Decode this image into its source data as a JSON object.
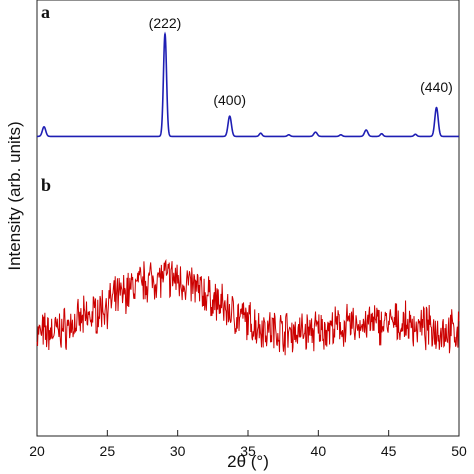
{
  "chart_data": {
    "type": "line",
    "xlabel": "2θ (°)",
    "ylabel": "Intensity (arb. units)",
    "xlim": [
      20,
      50
    ],
    "xticks": [
      20,
      25,
      30,
      35,
      40,
      45,
      50
    ],
    "y_tick_labels": false,
    "grid": false,
    "legend": "none",
    "panels": [
      {
        "id": "a",
        "letter": "a",
        "color": "#1f1fb4",
        "ylim": [
          0,
          120
        ],
        "baseline": 1.5,
        "peaks": [
          {
            "x": 20.5,
            "height": 9,
            "width": 0.12
          },
          {
            "x": 29.1,
            "height": 96,
            "width": 0.11
          },
          {
            "x": 33.7,
            "height": 19,
            "width": 0.12
          },
          {
            "x": 35.9,
            "height": 3,
            "width": 0.1
          },
          {
            "x": 37.9,
            "height": 1.5,
            "width": 0.1
          },
          {
            "x": 39.8,
            "height": 4,
            "width": 0.12
          },
          {
            "x": 41.6,
            "height": 1.5,
            "width": 0.1
          },
          {
            "x": 43.4,
            "height": 6,
            "width": 0.12
          },
          {
            "x": 44.5,
            "height": 2.5,
            "width": 0.1
          },
          {
            "x": 46.9,
            "height": 2,
            "width": 0.1
          },
          {
            "x": 48.4,
            "height": 27,
            "width": 0.12
          }
        ],
        "annotations": [
          {
            "text": "(222)",
            "x": 29.1,
            "y": 103
          },
          {
            "text": "(400)",
            "x": 33.7,
            "y": 31
          },
          {
            "text": "(440)",
            "x": 48.4,
            "y": 43
          }
        ]
      },
      {
        "id": "b",
        "letter": "b",
        "color": "#cc0000",
        "ylim": [
          0,
          100
        ],
        "baseline": 31,
        "hump": {
          "x": 29.0,
          "height": 27,
          "width": 3.6
        },
        "hump2": {
          "x": 44.5,
          "height": 6,
          "width": 3.5
        },
        "noise": 14,
        "step": 0.04
      }
    ]
  }
}
